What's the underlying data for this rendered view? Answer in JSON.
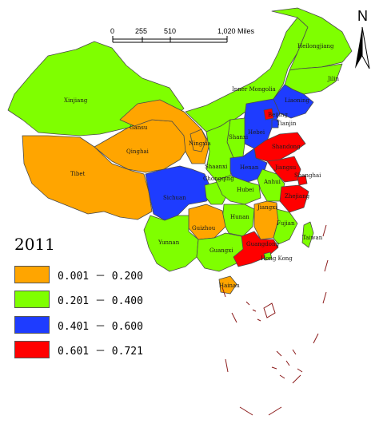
{
  "legend": {
    "title": "2011",
    "classes": [
      {
        "label": "0.001 － 0.200",
        "color": "#FFA500"
      },
      {
        "label": "0.201 － 0.400",
        "color": "#7FFF00"
      },
      {
        "label": "0.401 － 0.600",
        "color": "#1E3CFF"
      },
      {
        "label": "0.601 － 0.721",
        "color": "#FF0000"
      }
    ]
  },
  "scale_bar": {
    "ticks": [
      "0",
      "255",
      "510",
      "1,020 Miles"
    ]
  },
  "north_arrow": {
    "letter": "N"
  },
  "provinces": [
    {
      "name": "Xinjiang",
      "class": 1
    },
    {
      "name": "Tibet",
      "class": 0
    },
    {
      "name": "Qinghai",
      "class": 0
    },
    {
      "name": "Gansu",
      "class": 0
    },
    {
      "name": "Inner Mongolia",
      "class": 1
    },
    {
      "name": "Heilongjiang",
      "class": 1
    },
    {
      "name": "Jilin",
      "class": 1
    },
    {
      "name": "Liaoning",
      "class": 2
    },
    {
      "name": "Hebei",
      "class": 2
    },
    {
      "name": "Beijing",
      "class": 3
    },
    {
      "name": "Tianjin",
      "class": 2
    },
    {
      "name": "Shanxi",
      "class": 1
    },
    {
      "name": "Ningxia",
      "class": 0
    },
    {
      "name": "Shaanxi",
      "class": 1
    },
    {
      "name": "Shandong",
      "class": 3
    },
    {
      "name": "Henan",
      "class": 2
    },
    {
      "name": "Jiangsu",
      "class": 3
    },
    {
      "name": "Shanghai",
      "class": 3
    },
    {
      "name": "Anhui",
      "class": 1
    },
    {
      "name": "Zhejiang",
      "class": 3
    },
    {
      "name": "Sichuan",
      "class": 2
    },
    {
      "name": "Chongqing",
      "class": 1
    },
    {
      "name": "Hubei",
      "class": 1
    },
    {
      "name": "Hunan",
      "class": 1
    },
    {
      "name": "Jiangxi",
      "class": 0
    },
    {
      "name": "Fujian",
      "class": 1
    },
    {
      "name": "Guizhou",
      "class": 0
    },
    {
      "name": "Yunnan",
      "class": 1
    },
    {
      "name": "Guangxi",
      "class": 1
    },
    {
      "name": "Guangdong",
      "class": 3
    },
    {
      "name": "Hainan",
      "class": 0
    },
    {
      "name": "Taiwan",
      "class": 1
    },
    {
      "name": "Hong Kong",
      "class": 1
    }
  ]
}
